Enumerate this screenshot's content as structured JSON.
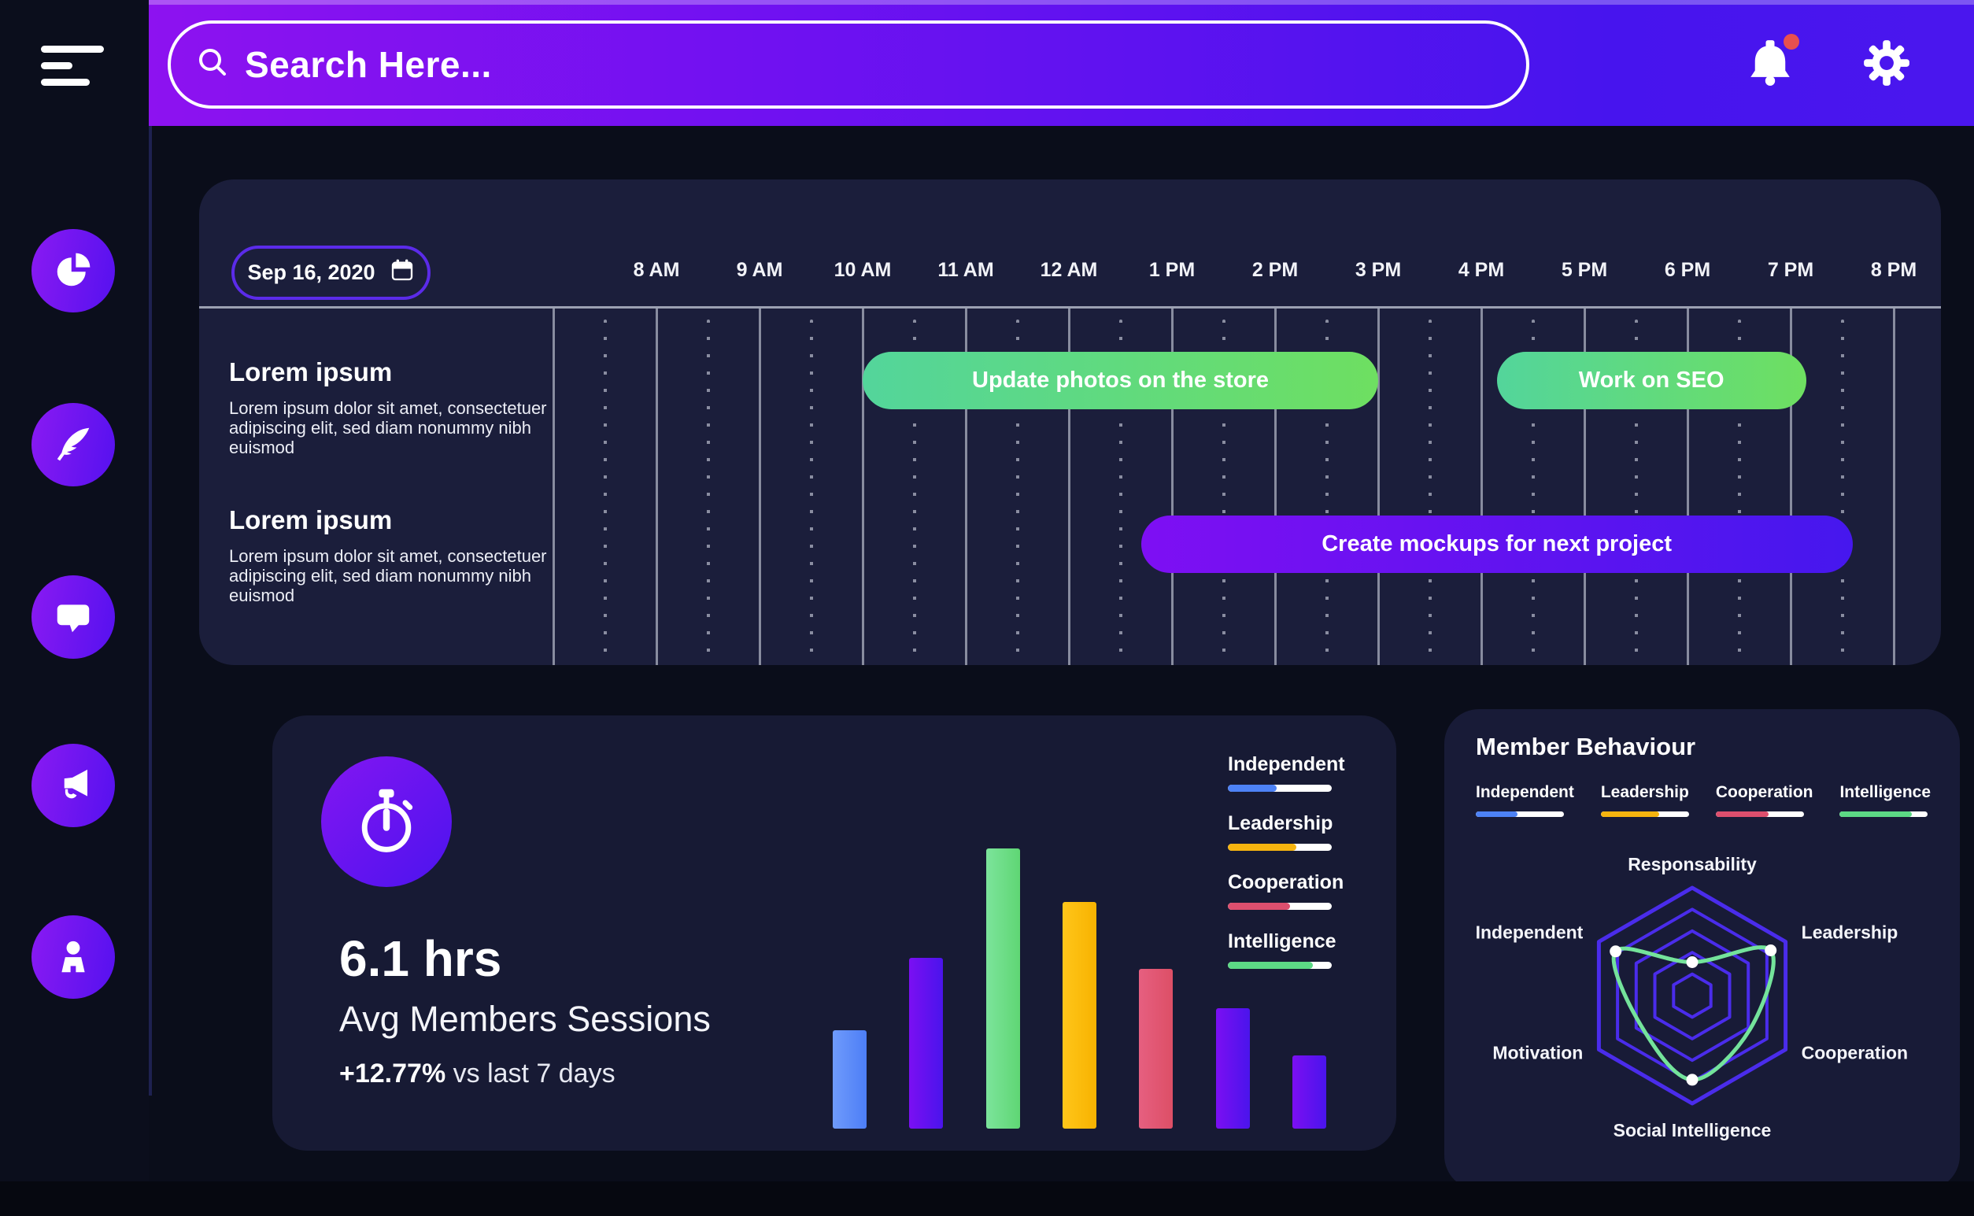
{
  "colors": {
    "accent_purple": "#7a12f2",
    "accent_indigo": "#4614ee",
    "badge_red": "#e8504f",
    "grid_gray": "#9ba0b2",
    "legend_blue": "#4d82f6",
    "legend_yellow": "#f6b40f",
    "legend_red": "#dd4f6e",
    "legend_green": "#5cd985",
    "radar_ring": "#4a2ceb",
    "radar_series": "#74e39b"
  },
  "topbar": {
    "search_placeholder": "Search Here...",
    "icons": [
      "bell",
      "gear"
    ],
    "bell_has_notification": true
  },
  "sidebar": {
    "items": [
      "pie-chart",
      "quill",
      "chat",
      "megaphone",
      "profile"
    ]
  },
  "timeline": {
    "date": "Sep 16, 2020",
    "hour_labels": [
      "8 AM",
      "9 AM",
      "10 AM",
      "11 AM",
      "12 AM",
      "1 PM",
      "2 PM",
      "3 PM",
      "4 PM",
      "5 PM",
      "6 PM",
      "7 PM",
      "8 PM"
    ],
    "rows": [
      {
        "title": "Lorem ipsum",
        "description": "Lorem ipsum dolor sit amet, consectetuer adipiscing elit, sed diam nonummy nibh euismod"
      },
      {
        "title": "Lorem ipsum",
        "description": "Lorem ipsum dolor sit amet, consectetuer adipiscing elit, sed diam nonummy nibh euismod"
      }
    ],
    "tasks": [
      {
        "label": "Update photos on the store",
        "row": 0,
        "start_hour": 10.0,
        "end_hour": 15.0,
        "color": "green"
      },
      {
        "label": "Work on SEO",
        "row": 0,
        "start_hour": 16.15,
        "end_hour": 19.15,
        "color": "green"
      },
      {
        "label": "Create mockups for next project",
        "row": 1,
        "start_hour": 12.7,
        "end_hour": 19.6,
        "color": "purple"
      }
    ]
  },
  "sessions": {
    "value": "6.1 hrs",
    "label": "Avg Members Sessions",
    "delta": "+12.77%",
    "delta_suffix": " vs last 7 days",
    "legend": [
      {
        "label": "Independent",
        "color": "#4d82f6",
        "percent": 47
      },
      {
        "label": "Leadership",
        "color": "#f6b40f",
        "percent": 66
      },
      {
        "label": "Cooperation",
        "color": "#dd4f6e",
        "percent": 60
      },
      {
        "label": "Intelligence",
        "color": "#5cd985",
        "percent": 82
      }
    ]
  },
  "behaviour": {
    "title": "Member Behaviour",
    "legend": [
      {
        "label": "Independent",
        "color": "#4d82f6",
        "percent": 47
      },
      {
        "label": "Leadership",
        "color": "#f6b40f",
        "percent": 66
      },
      {
        "label": "Cooperation",
        "color": "#dd4f6e",
        "percent": 60
      },
      {
        "label": "Intelligence",
        "color": "#5cd985",
        "percent": 82
      }
    ]
  },
  "chart_data": [
    {
      "type": "bar",
      "title": "Avg Members Sessions",
      "categories": [
        "",
        "",
        "",
        "",
        "",
        "",
        ""
      ],
      "values": [
        35,
        61,
        100,
        81,
        57,
        43,
        26
      ],
      "bar_colors": [
        "blue",
        "purple",
        "green",
        "yellow",
        "pink",
        "purple",
        "purple"
      ],
      "ylim": [
        0,
        100
      ],
      "grid": false,
      "axes_visible": false,
      "legend_position": "right",
      "legend_entries": [
        "Independent",
        "Leadership",
        "Cooperation",
        "Intelligence"
      ]
    },
    {
      "type": "radar",
      "title": "Member Behaviour",
      "axes": [
        "Responsability",
        "Leadership",
        "Cooperation",
        "Social Intelligence",
        "Motivation",
        "Independent"
      ],
      "values_fraction_of_max": [
        0.31,
        0.84,
        0.62,
        0.78,
        0.55,
        0.82
      ],
      "rings": 5,
      "dot_axes": [
        0,
        1,
        3,
        5
      ],
      "series_color": "#74e39b",
      "ring_color": "#4a2ceb"
    }
  ]
}
